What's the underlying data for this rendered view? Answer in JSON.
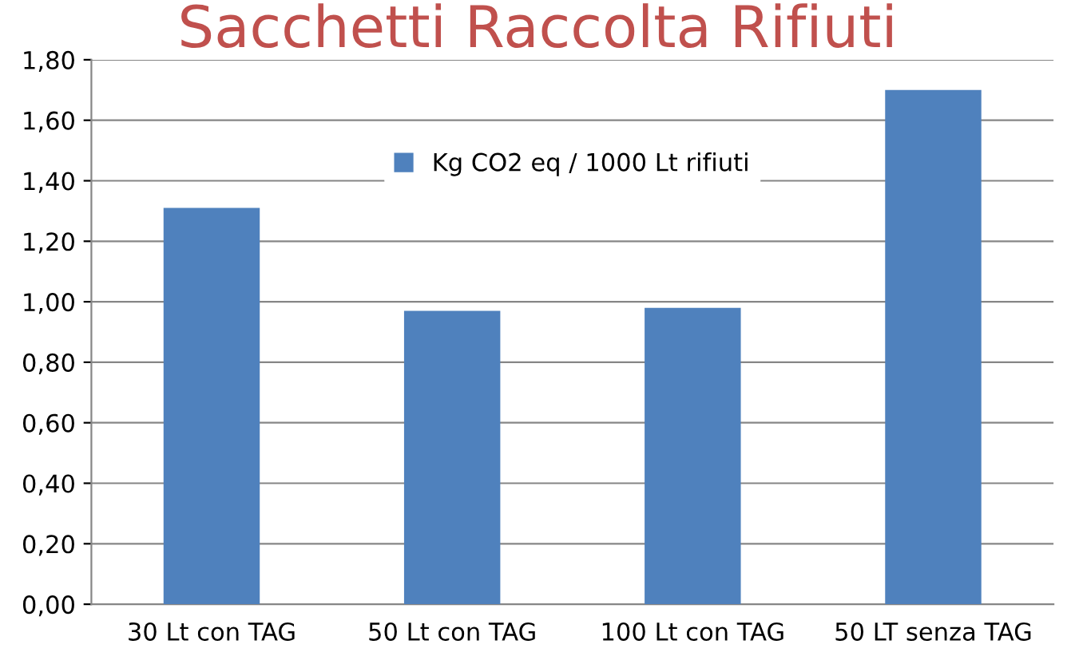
{
  "chart_data": {
    "type": "bar",
    "title": "Sacchetti Raccolta Rifiuti",
    "categories": [
      "30 Lt con TAG",
      "50 Lt con TAG",
      "100 Lt con TAG",
      "50 LT senza TAG"
    ],
    "series": [
      {
        "name": "Kg CO2 eq / 1000 Lt rifiuti",
        "color": "#4f81bd",
        "values": [
          1.31,
          0.97,
          0.98,
          1.7
        ]
      }
    ],
    "ylim": [
      0,
      1.8
    ],
    "yticks": [
      {
        "value": 0,
        "label": "0,00"
      },
      {
        "value": 0.2,
        "label": "0,20"
      },
      {
        "value": 0.4,
        "label": "0,40"
      },
      {
        "value": 0.6,
        "label": "0,60"
      },
      {
        "value": 0.8,
        "label": "0,80"
      },
      {
        "value": 1.0,
        "label": "1,00"
      },
      {
        "value": 1.2,
        "label": "1,20"
      },
      {
        "value": 1.4,
        "label": "1,40"
      },
      {
        "value": 1.6,
        "label": "1,60"
      },
      {
        "value": 1.8,
        "label": "1,80"
      }
    ],
    "grid": "y",
    "legend": "top"
  }
}
